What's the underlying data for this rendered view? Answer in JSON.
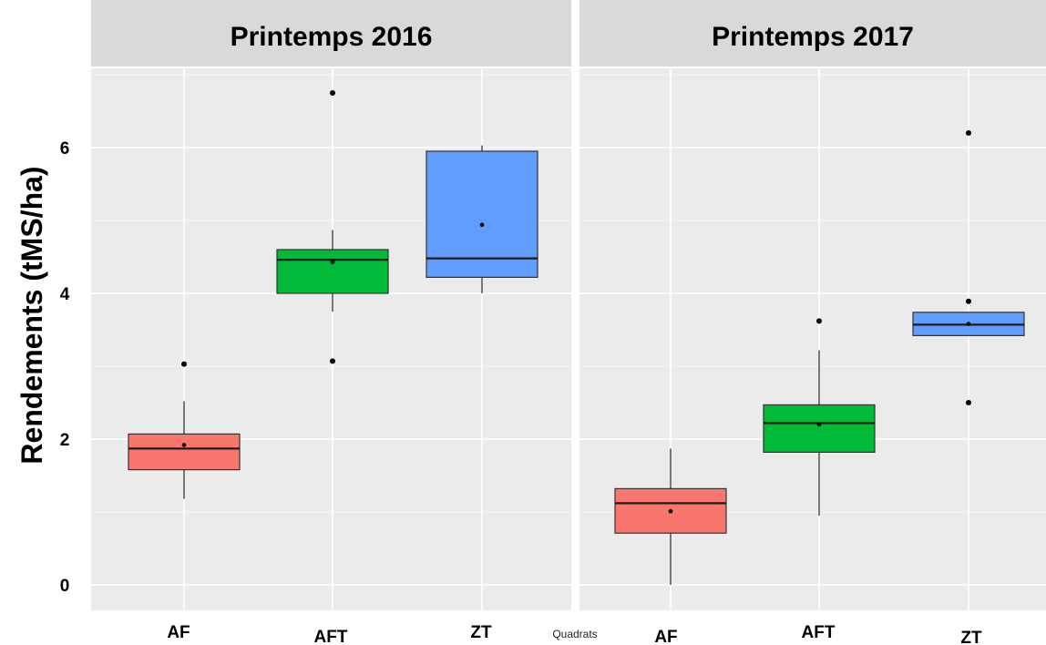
{
  "chart_data": {
    "type": "boxplot",
    "ylabel": "Rendements (tMS/ha)",
    "xlabel": "Quadrats",
    "ylim": [
      -0.3,
      7.2
    ],
    "yticks": [
      0,
      2,
      4,
      6
    ],
    "grid": true,
    "categories": [
      "AF",
      "AFT",
      "ZT"
    ],
    "colors": {
      "AF": "#f8766d",
      "AFT": "#00ba38",
      "ZT": "#619cff"
    },
    "panels": [
      {
        "title": "Printemps 2016",
        "boxes": [
          {
            "category": "AF",
            "whisker_low": 1.18,
            "q1": 1.58,
            "median": 1.87,
            "q3": 2.07,
            "whisker_high": 2.52,
            "mean": 1.92,
            "outliers": [
              3.03
            ]
          },
          {
            "category": "AFT",
            "whisker_low": 3.75,
            "q1": 4.0,
            "median": 4.46,
            "q3": 4.6,
            "whisker_high": 4.87,
            "mean": 4.43,
            "outliers": [
              3.07,
              6.75
            ]
          },
          {
            "category": "ZT",
            "whisker_low": 4.0,
            "q1": 4.22,
            "median": 4.48,
            "q3": 5.95,
            "whisker_high": 6.03,
            "mean": 4.94,
            "outliers": []
          }
        ]
      },
      {
        "title": "Printemps 2017",
        "boxes": [
          {
            "category": "AF",
            "whisker_low": 0.0,
            "q1": 0.71,
            "median": 1.12,
            "q3": 1.32,
            "whisker_high": 1.87,
            "mean": 1.01,
            "outliers": []
          },
          {
            "category": "AFT",
            "whisker_low": 0.95,
            "q1": 1.82,
            "median": 2.22,
            "q3": 2.47,
            "whisker_high": 3.22,
            "mean": 2.2,
            "outliers": [
              3.62
            ]
          },
          {
            "category": "ZT",
            "whisker_low": 3.42,
            "q1": 3.42,
            "median": 3.57,
            "q3": 3.74,
            "whisker_high": 3.74,
            "mean": 3.58,
            "outliers": [
              3.89,
              6.2,
              2.5
            ]
          }
        ]
      }
    ]
  }
}
